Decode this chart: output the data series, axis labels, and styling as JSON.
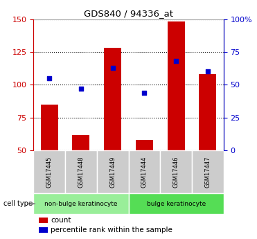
{
  "title": "GDS840 / 94336_at",
  "samples": [
    "GSM17445",
    "GSM17448",
    "GSM17449",
    "GSM17444",
    "GSM17446",
    "GSM17447"
  ],
  "counts": [
    85,
    62,
    128,
    58,
    148,
    108
  ],
  "pct_ranks": [
    55,
    47,
    63,
    44,
    68,
    60
  ],
  "ylim_left": [
    50,
    150
  ],
  "ylim_right": [
    0,
    100
  ],
  "yticks_left": [
    50,
    75,
    100,
    125,
    150
  ],
  "yticks_right": [
    0,
    25,
    50,
    75,
    100
  ],
  "yticklabels_right": [
    "0",
    "25",
    "50",
    "75",
    "100%"
  ],
  "bar_color": "#cc0000",
  "dot_color": "#0000cc",
  "bar_width": 0.55,
  "xlabel_area_color": "#cccccc",
  "left_axis_color": "#cc0000",
  "right_axis_color": "#0000cc",
  "groups": [
    {
      "label": "non-bulge keratinocyte",
      "indices": [
        0,
        1,
        2
      ],
      "color": "#99ee99"
    },
    {
      "label": "bulge keratinocyte",
      "indices": [
        3,
        4,
        5
      ],
      "color": "#55dd55"
    }
  ],
  "cell_type_label": "cell type",
  "legend_count_label": "count",
  "legend_percentile_label": "percentile rank within the sample"
}
